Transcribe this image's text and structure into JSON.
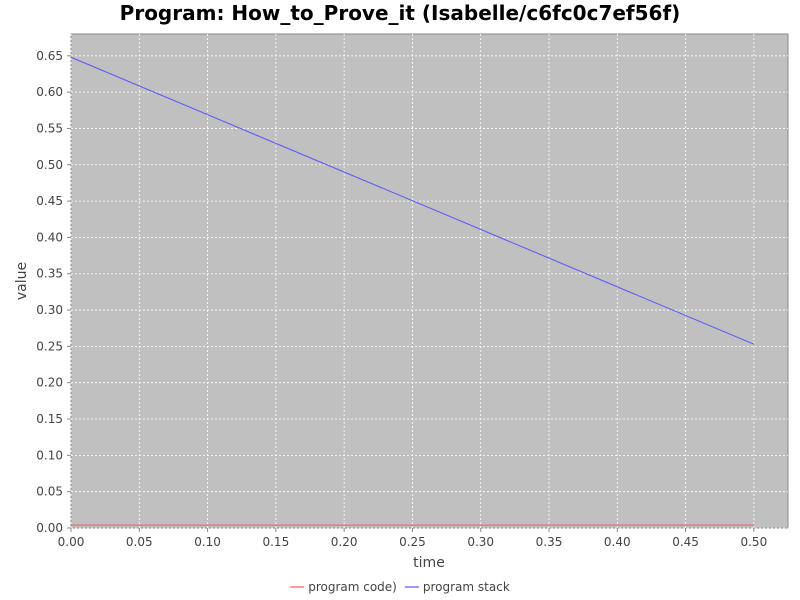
{
  "chart_data": {
    "type": "line",
    "title": "Program: How_to_Prove_it (Isabelle/c6fc0c7ef56f)",
    "xlabel": "time",
    "ylabel": "value",
    "xlim": [
      0.0,
      0.525
    ],
    "ylim": [
      0.0,
      0.68
    ],
    "x_ticks": [
      "0.00",
      "0.05",
      "0.10",
      "0.15",
      "0.20",
      "0.25",
      "0.30",
      "0.35",
      "0.40",
      "0.45",
      "0.50"
    ],
    "y_ticks": [
      "0.00",
      "0.05",
      "0.10",
      "0.15",
      "0.20",
      "0.25",
      "0.30",
      "0.35",
      "0.40",
      "0.45",
      "0.50",
      "0.55",
      "0.60",
      "0.65"
    ],
    "grid": true,
    "legend_position": "bottom",
    "plot_background": "#c0c0c0",
    "series": [
      {
        "name": "program code)",
        "color": "#ff5555",
        "x": [
          0.0,
          0.5
        ],
        "y": [
          0.004,
          0.004
        ]
      },
      {
        "name": "program stack",
        "color": "#5555ff",
        "x": [
          0.0,
          0.5
        ],
        "y": [
          0.648,
          0.253
        ]
      }
    ]
  }
}
